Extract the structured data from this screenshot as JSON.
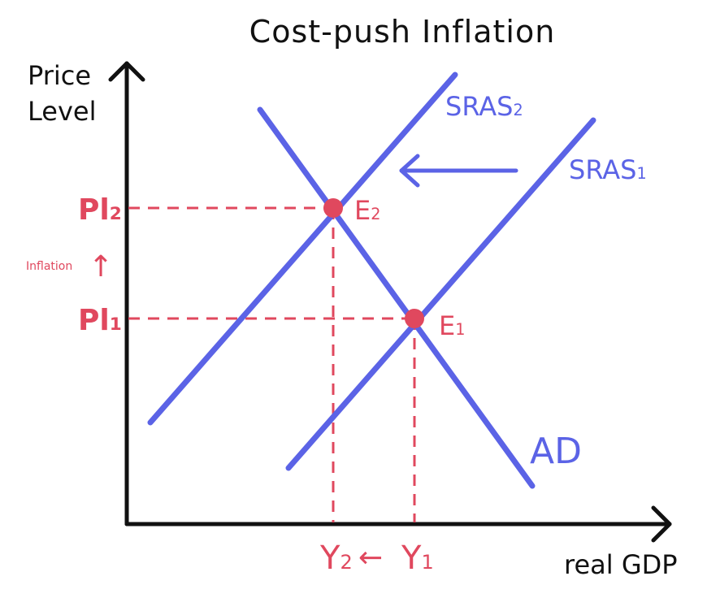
{
  "title": "Cost-push Inflation",
  "axes": {
    "y_label_line1": "Price",
    "y_label_line2": "Level",
    "x_label": "real GDP"
  },
  "curves": {
    "sras2": {
      "base": "SRAS",
      "sub": "2"
    },
    "sras1": {
      "base": "SRAS",
      "sub": "1"
    },
    "ad": "AD"
  },
  "points": {
    "e2": {
      "base": "E",
      "sub": "2"
    },
    "e1": {
      "base": "E",
      "sub": "1"
    }
  },
  "price_levels": {
    "pl2": {
      "base": "Pl",
      "sub": "2"
    },
    "pl1": {
      "base": "Pl",
      "sub": "1"
    }
  },
  "inflation_note": {
    "text": "Inflation",
    "arrow": "↑"
  },
  "outputs": {
    "y2": {
      "base": "Y",
      "sub": "2"
    },
    "arrow": "←",
    "y1": {
      "base": "Y",
      "sub": "1"
    }
  },
  "colors": {
    "curve": "#5b63e6",
    "equilibrium": "#e0485e",
    "axis": "#111111"
  }
}
